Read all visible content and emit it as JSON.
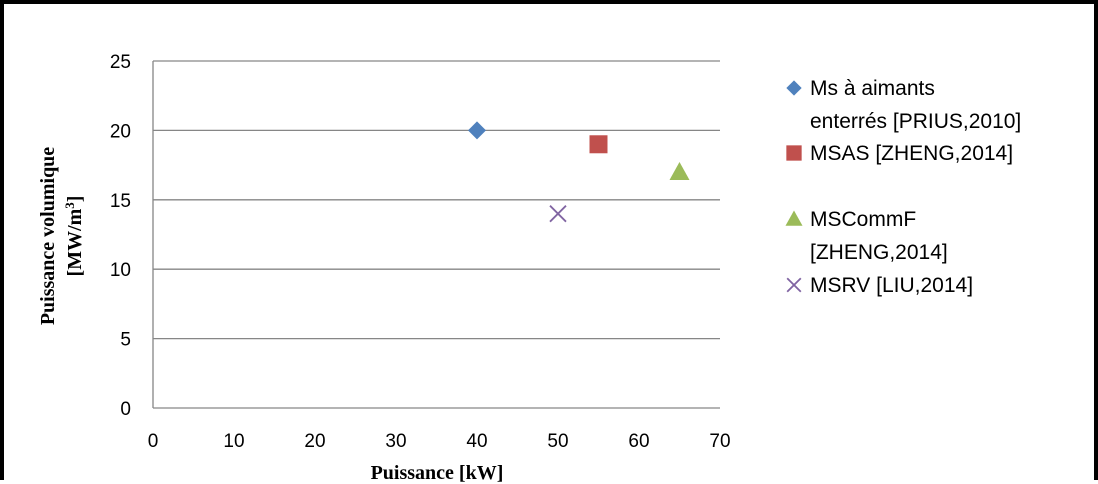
{
  "chart_data": {
    "type": "scatter",
    "xlabel": "Puissance [kW]",
    "ylabel_line1": "Puissance volumique",
    "ylabel_line2": "[MW/m",
    "ylabel_sup": "3",
    "ylabel_end": "]",
    "xlim": [
      0,
      70
    ],
    "ylim": [
      0,
      25
    ],
    "xticks": [
      0,
      10,
      20,
      30,
      40,
      50,
      60,
      70
    ],
    "yticks": [
      0,
      5,
      10,
      15,
      20,
      25
    ],
    "grid": "horizontal",
    "legend_position": "right",
    "series": [
      {
        "name_lines": [
          "Ms à aimants",
          "enterrés [PRIUS,2010]"
        ],
        "marker": "diamond",
        "color": "#4F81BD",
        "points": [
          {
            "x": 40,
            "y": 20
          }
        ]
      },
      {
        "name_lines": [
          "MSAS [ZHENG,2014]"
        ],
        "marker": "square",
        "color": "#C0504D",
        "points": [
          {
            "x": 55,
            "y": 19
          }
        ]
      },
      {
        "name_lines": [
          "MSCommF",
          "[ZHENG,2014]"
        ],
        "marker": "triangle",
        "color": "#9BBB59",
        "points": [
          {
            "x": 65,
            "y": 17
          }
        ]
      },
      {
        "name_lines": [
          "MSRV [LIU,2014]"
        ],
        "marker": "x",
        "color": "#8064A2",
        "points": [
          {
            "x": 50,
            "y": 14
          }
        ]
      }
    ]
  }
}
